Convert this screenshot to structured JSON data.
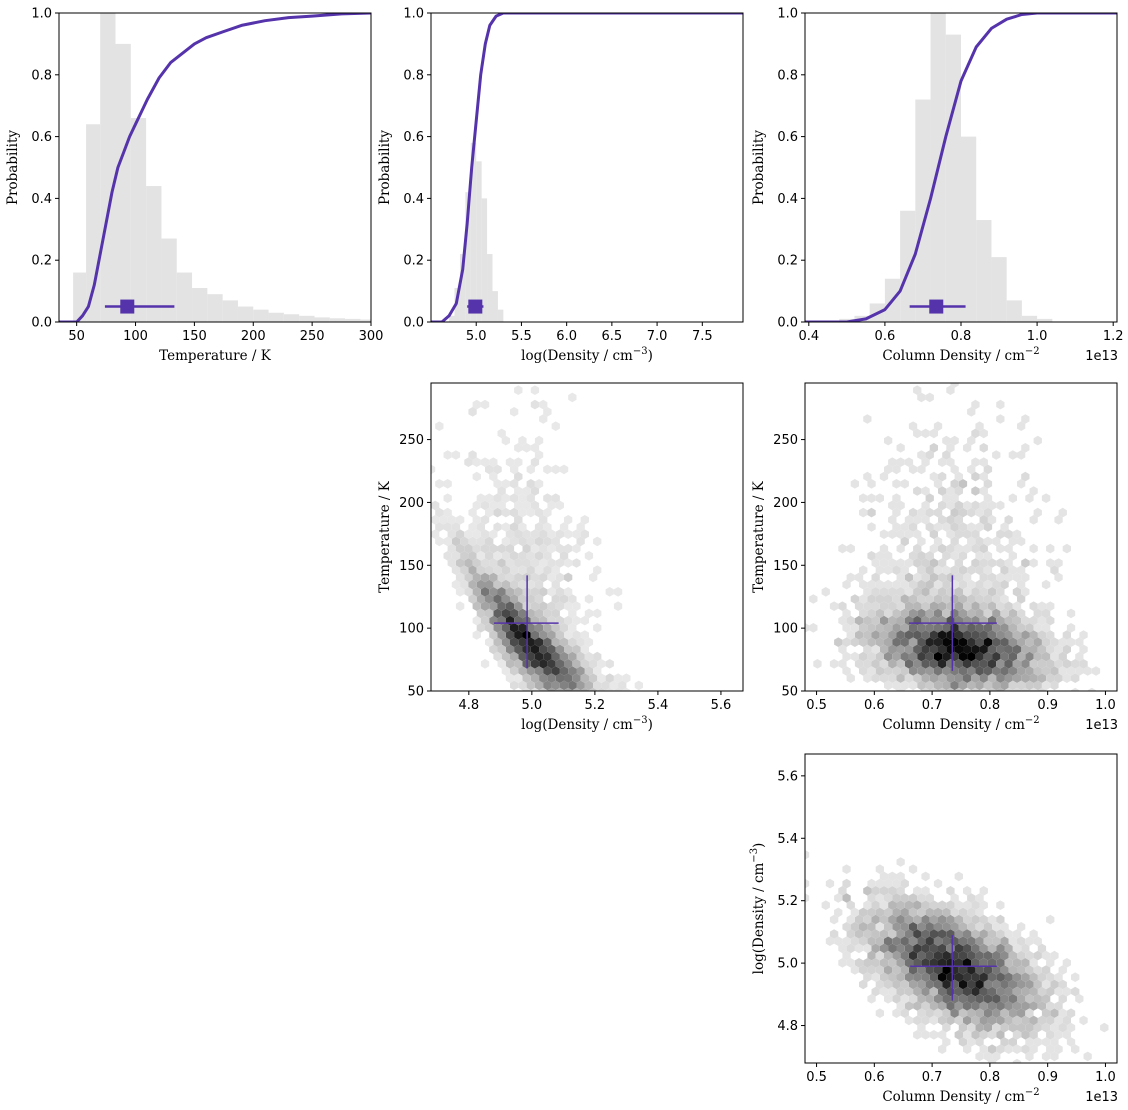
{
  "accent_color": "#5533aa",
  "chart_data": [
    {
      "type": "histogram+cdf",
      "xlabel": "Temperature / K",
      "ylabel": "Probability",
      "xlim": [
        35,
        300
      ],
      "ylim": [
        0,
        1
      ],
      "x_ticks": [
        "50",
        "100",
        "150",
        "200",
        "250",
        "300"
      ],
      "y_ticks": [
        "0.0",
        "0.2",
        "0.4",
        "0.6",
        "0.8",
        "1.0"
      ],
      "hist_bins": [
        [
          47,
          58,
          0.16
        ],
        [
          58,
          70,
          0.64
        ],
        [
          70,
          83,
          1.0
        ],
        [
          83,
          96,
          0.9
        ],
        [
          96,
          109,
          0.66
        ],
        [
          109,
          122,
          0.44
        ],
        [
          122,
          135,
          0.27
        ],
        [
          135,
          148,
          0.16
        ],
        [
          148,
          161,
          0.11
        ],
        [
          161,
          174,
          0.09
        ],
        [
          174,
          187,
          0.07
        ],
        [
          187,
          200,
          0.05
        ],
        [
          200,
          213,
          0.04
        ],
        [
          213,
          226,
          0.03
        ],
        [
          226,
          239,
          0.025
        ],
        [
          239,
          252,
          0.02
        ],
        [
          252,
          265,
          0.015
        ],
        [
          265,
          278,
          0.012
        ],
        [
          278,
          291,
          0.01
        ],
        [
          291,
          300,
          0.008
        ]
      ],
      "cdf": [
        [
          35,
          0
        ],
        [
          50,
          0.0
        ],
        [
          55,
          0.02
        ],
        [
          60,
          0.05
        ],
        [
          65,
          0.12
        ],
        [
          70,
          0.22
        ],
        [
          75,
          0.32
        ],
        [
          80,
          0.42
        ],
        [
          85,
          0.5
        ],
        [
          90,
          0.55
        ],
        [
          95,
          0.6
        ],
        [
          100,
          0.64
        ],
        [
          105,
          0.68
        ],
        [
          110,
          0.72
        ],
        [
          120,
          0.79
        ],
        [
          130,
          0.84
        ],
        [
          140,
          0.87
        ],
        [
          150,
          0.9
        ],
        [
          160,
          0.92
        ],
        [
          175,
          0.94
        ],
        [
          190,
          0.96
        ],
        [
          210,
          0.975
        ],
        [
          230,
          0.985
        ],
        [
          250,
          0.99
        ],
        [
          275,
          0.997
        ],
        [
          300,
          1.0
        ]
      ],
      "marker": {
        "x": 93,
        "y": 0.05,
        "xerr": [
          74,
          133
        ]
      }
    },
    {
      "type": "histogram+cdf",
      "xlabel": "log(Density / cm",
      "xlabel_sup": "−3",
      "xlabel_end": ")",
      "ylabel": "Probability",
      "xlim": [
        4.5,
        7.95
      ],
      "ylim": [
        0,
        1
      ],
      "x_ticks": [
        "5.0",
        "5.5",
        "6.0",
        "6.5",
        "7.0",
        "7.5"
      ],
      "y_ticks": [
        "0.0",
        "0.2",
        "0.4",
        "0.6",
        "0.8",
        "1.0"
      ],
      "hist_bins": [
        [
          4.7,
          4.76,
          0.02
        ],
        [
          4.76,
          4.82,
          0.11
        ],
        [
          4.82,
          4.88,
          0.22
        ],
        [
          4.88,
          4.94,
          0.42
        ],
        [
          4.94,
          5.0,
          0.58
        ],
        [
          5.0,
          5.06,
          0.52
        ],
        [
          5.06,
          5.12,
          0.4
        ],
        [
          5.12,
          5.18,
          0.22
        ],
        [
          5.18,
          5.24,
          0.1
        ],
        [
          5.24,
          5.3,
          0.04
        ]
      ],
      "cdf": [
        [
          4.5,
          0
        ],
        [
          4.62,
          0.0
        ],
        [
          4.7,
          0.02
        ],
        [
          4.78,
          0.06
        ],
        [
          4.85,
          0.17
        ],
        [
          4.9,
          0.32
        ],
        [
          4.95,
          0.5
        ],
        [
          5.0,
          0.65
        ],
        [
          5.05,
          0.8
        ],
        [
          5.1,
          0.9
        ],
        [
          5.15,
          0.96
        ],
        [
          5.22,
          0.99
        ],
        [
          5.3,
          1.0
        ],
        [
          7.95,
          1.0
        ]
      ],
      "marker": {
        "x": 4.99,
        "y": 0.05,
        "xerr": [
          4.9,
          5.08
        ]
      }
    },
    {
      "type": "histogram+cdf",
      "xlabel": "Column Density / cm",
      "xlabel_sup": "−2",
      "xlabel_end": "",
      "ylabel": "Probability",
      "offset": "1e13",
      "xlim": [
        0.39,
        1.21
      ],
      "ylim": [
        0,
        1
      ],
      "x_ticks": [
        "0.4",
        "0.6",
        "0.8",
        "1.0",
        "1.2"
      ],
      "y_ticks": [
        "0.0",
        "0.2",
        "0.4",
        "0.6",
        "0.8",
        "1.0"
      ],
      "hist_bins": [
        [
          0.48,
          0.52,
          0.01
        ],
        [
          0.52,
          0.56,
          0.02
        ],
        [
          0.56,
          0.6,
          0.06
        ],
        [
          0.6,
          0.64,
          0.14
        ],
        [
          0.64,
          0.68,
          0.36
        ],
        [
          0.68,
          0.72,
          0.72
        ],
        [
          0.72,
          0.76,
          1.0
        ],
        [
          0.76,
          0.8,
          0.93
        ],
        [
          0.8,
          0.84,
          0.6
        ],
        [
          0.84,
          0.88,
          0.33
        ],
        [
          0.88,
          0.92,
          0.21
        ],
        [
          0.92,
          0.96,
          0.07
        ],
        [
          0.96,
          1.0,
          0.02
        ],
        [
          1.0,
          1.04,
          0.01
        ]
      ],
      "cdf": [
        [
          0.39,
          0
        ],
        [
          0.5,
          0.0
        ],
        [
          0.55,
          0.01
        ],
        [
          0.6,
          0.04
        ],
        [
          0.64,
          0.1
        ],
        [
          0.68,
          0.22
        ],
        [
          0.72,
          0.4
        ],
        [
          0.76,
          0.6
        ],
        [
          0.8,
          0.78
        ],
        [
          0.84,
          0.89
        ],
        [
          0.88,
          0.95
        ],
        [
          0.92,
          0.98
        ],
        [
          0.96,
          0.995
        ],
        [
          1.0,
          1.0
        ],
        [
          1.21,
          1.0
        ]
      ],
      "marker": {
        "x": 0.735,
        "y": 0.05,
        "xerr": [
          0.665,
          0.812
        ]
      }
    },
    {
      "type": "hexbin",
      "xlabel": "log(Density / cm",
      "xlabel_sup": "−3",
      "xlabel_end": ")",
      "ylabel": "Temperature / K",
      "xlim": [
        4.68,
        5.67
      ],
      "ylim": [
        50,
        295
      ],
      "x_ticks": [
        "4.8",
        "5.0",
        "5.2",
        "5.4",
        "5.6"
      ],
      "y_ticks": [
        "50",
        "100",
        "150",
        "200",
        "250"
      ],
      "center": [
        5.0,
        82
      ],
      "cross": {
        "x": 4.985,
        "y": 104,
        "xerr": [
          4.88,
          5.085
        ],
        "yerr": [
          68,
          142
        ]
      }
    },
    {
      "type": "hexbin",
      "xlabel": "Column Density / cm",
      "xlabel_sup": "−2",
      "xlabel_end": "",
      "ylabel": "Temperature / K",
      "offset": "1e13",
      "xlim": [
        0.48,
        1.02
      ],
      "ylim": [
        50,
        295
      ],
      "x_ticks": [
        "0.5",
        "0.6",
        "0.7",
        "0.8",
        "0.9",
        "1.0"
      ],
      "y_ticks": [
        "50",
        "100",
        "150",
        "200",
        "250"
      ],
      "center": [
        0.745,
        82
      ],
      "cross": {
        "x": 0.735,
        "y": 104,
        "xerr": [
          0.66,
          0.812
        ],
        "yerr": [
          66,
          142
        ]
      }
    },
    {
      "type": "hexbin",
      "xlabel": "Column Density / cm",
      "xlabel_sup": "−2",
      "xlabel_end": "",
      "ylabel": "log(Density / cm",
      "ylabel_sup": "−3",
      "ylabel_end": ")",
      "offset": "1e13",
      "xlim": [
        0.48,
        1.02
      ],
      "ylim": [
        4.68,
        5.67
      ],
      "x_ticks": [
        "0.5",
        "0.6",
        "0.7",
        "0.8",
        "0.9",
        "1.0"
      ],
      "y_ticks": [
        "4.8",
        "5.0",
        "5.2",
        "5.4",
        "5.6"
      ],
      "center": [
        0.74,
        4.98
      ],
      "cross": {
        "x": 0.735,
        "y": 4.99,
        "xerr": [
          0.662,
          0.812
        ],
        "yerr": [
          4.88,
          5.09
        ]
      }
    }
  ]
}
